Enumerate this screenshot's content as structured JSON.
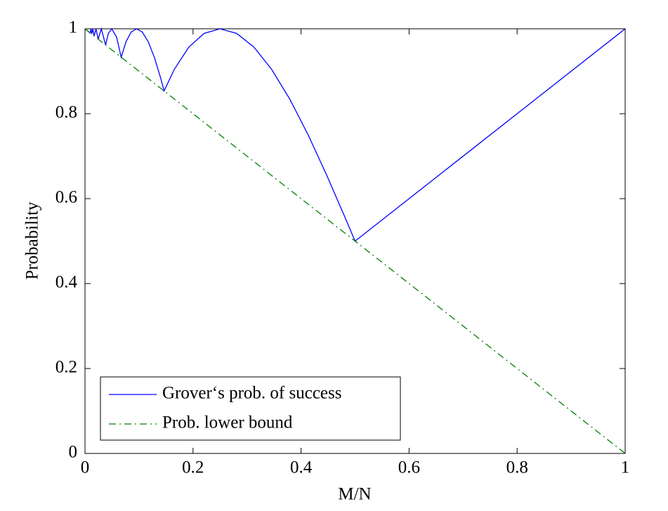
{
  "chart_data": {
    "type": "line",
    "xlabel": "M/N",
    "ylabel": "Probability",
    "xlim": [
      0,
      1
    ],
    "ylim": [
      0,
      1
    ],
    "xticks": [
      0,
      0.2,
      0.4,
      0.6,
      0.8,
      1
    ],
    "yticks": [
      0,
      0.2,
      0.4,
      0.6,
      0.8,
      1
    ],
    "grid": false,
    "legend": "lower left",
    "series": [
      {
        "name": "Grover‘s prob. of success",
        "color": "#0000ff",
        "style": "solid",
        "x": [
          0,
          0.0096,
          0.011,
          0.0125,
          0.0145,
          0.017,
          0.0203,
          0.0245,
          0.0302,
          0.0381,
          0.0432,
          0.0495,
          0.0585,
          0.067,
          0.076,
          0.0855,
          0.0955,
          0.106,
          0.117,
          0.1284,
          0.1403,
          0.1464,
          0.1654,
          0.1922,
          0.2204,
          0.25,
          0.2808,
          0.3127,
          0.3455,
          0.379,
          0.4132,
          0.4477,
          0.4826,
          0.5,
          1
        ],
        "values": [
          1,
          0.99,
          1,
          0.9876,
          1,
          0.983,
          1,
          0.9755,
          1,
          0.9619,
          0.9891,
          1,
          0.9806,
          0.933,
          0.9698,
          0.9924,
          1,
          0.9924,
          0.9698,
          0.933,
          0.883,
          0.8536,
          0.9045,
          0.9568,
          0.9891,
          1,
          0.9891,
          0.9568,
          0.9045,
          0.8346,
          0.75,
          0.6545,
          0.5523,
          0.5,
          1
        ]
      },
      {
        "name": "Prob. lower bound",
        "color": "#007f00",
        "style": "dashdot",
        "x": [
          0,
          1
        ],
        "values": [
          1,
          0
        ]
      }
    ]
  }
}
